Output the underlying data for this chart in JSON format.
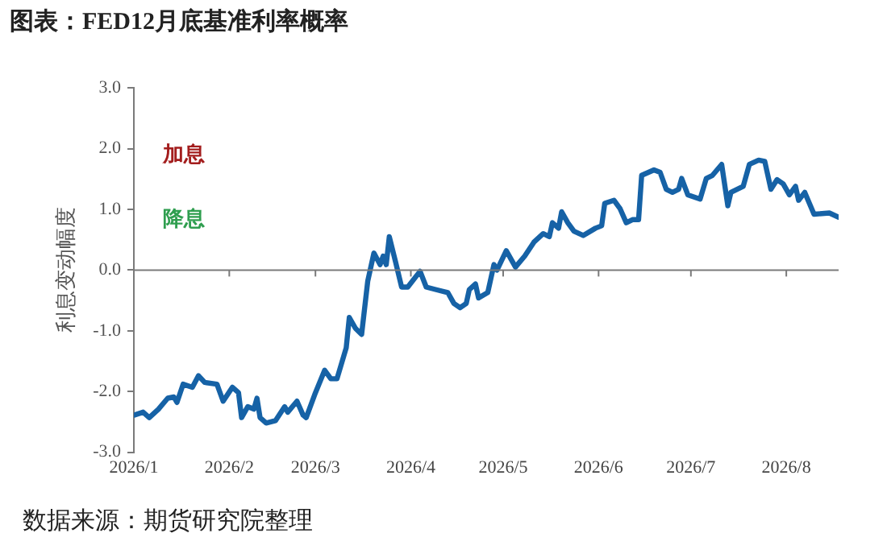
{
  "chart_data": {
    "type": "line",
    "title": "图表：FED12月底基准利率概率",
    "ylabel": "利息变动幅度",
    "annotations": [
      "加息",
      "降息",
      "数据来源：期货研究院整理"
    ],
    "x": [
      "2026-01-01",
      "2026-01-04",
      "2026-01-06",
      "2026-01-09",
      "2026-01-12",
      "2026-01-14",
      "2026-01-15",
      "2026-01-17",
      "2026-01-20",
      "2026-01-22",
      "2026-01-24",
      "2026-01-28",
      "2026-01-30",
      "2026-02-02",
      "2026-02-04",
      "2026-02-05",
      "2026-02-07",
      "2026-02-09",
      "2026-02-10",
      "2026-02-11",
      "2026-02-13",
      "2026-02-16",
      "2026-02-19",
      "2026-02-20",
      "2026-02-23",
      "2026-02-25",
      "2026-02-26",
      "2026-03-01",
      "2026-03-04",
      "2026-03-06",
      "2026-03-08",
      "2026-03-11",
      "2026-03-12",
      "2026-03-14",
      "2026-03-16",
      "2026-03-18",
      "2026-03-20",
      "2026-03-22",
      "2026-03-23",
      "2026-03-24",
      "2026-03-25",
      "2026-03-27",
      "2026-03-29",
      "2026-03-31",
      "2026-04-04",
      "2026-04-06",
      "2026-04-09",
      "2026-04-13",
      "2026-04-15",
      "2026-04-17",
      "2026-04-19",
      "2026-04-20",
      "2026-04-22",
      "2026-04-23",
      "2026-04-26",
      "2026-04-28",
      "2026-04-29",
      "2026-05-02",
      "2026-05-04",
      "2026-05-05",
      "2026-05-08",
      "2026-05-11",
      "2026-05-14",
      "2026-05-16",
      "2026-05-17",
      "2026-05-19",
      "2026-05-20",
      "2026-05-22",
      "2026-05-24",
      "2026-05-27",
      "2026-05-31",
      "2026-06-02",
      "2026-06-03",
      "2026-06-06",
      "2026-06-08",
      "2026-06-10",
      "2026-06-12",
      "2026-06-14",
      "2026-06-15",
      "2026-06-19",
      "2026-06-21",
      "2026-06-23",
      "2026-06-25",
      "2026-06-27",
      "2026-06-28",
      "2026-06-30",
      "2026-07-04",
      "2026-07-06",
      "2026-07-08",
      "2026-07-11",
      "2026-07-13",
      "2026-07-14",
      "2026-07-18",
      "2026-07-20",
      "2026-07-23",
      "2026-07-25",
      "2026-07-27",
      "2026-07-29",
      "2026-07-31",
      "2026-08-02",
      "2026-08-04",
      "2026-08-05",
      "2026-08-07",
      "2026-08-10",
      "2026-08-15",
      "2026-08-18"
    ],
    "series": [
      {
        "color": "#1662a6",
        "values": [
          -2.39,
          -2.34,
          -2.43,
          -2.29,
          -2.11,
          -2.09,
          -2.18,
          -1.88,
          -1.93,
          -1.74,
          -1.85,
          -1.88,
          -2.16,
          -1.93,
          -2.02,
          -2.43,
          -2.25,
          -2.29,
          -2.11,
          -2.43,
          -2.52,
          -2.48,
          -2.25,
          -2.34,
          -2.16,
          -2.39,
          -2.43,
          -2.02,
          -1.65,
          -1.79,
          -1.79,
          -1.28,
          -0.78,
          -0.96,
          -1.06,
          -0.18,
          0.28,
          0.09,
          0.23,
          0.09,
          0.55,
          0.14,
          -0.28,
          -0.28,
          -0.02,
          -0.28,
          -0.32,
          -0.37,
          -0.55,
          -0.62,
          -0.55,
          -0.32,
          -0.23,
          -0.46,
          -0.37,
          0.09,
          0.0,
          0.32,
          0.14,
          0.05,
          0.23,
          0.46,
          0.6,
          0.55,
          0.78,
          0.69,
          0.96,
          0.78,
          0.64,
          0.57,
          0.69,
          0.73,
          1.1,
          1.15,
          1.01,
          0.78,
          0.83,
          0.83,
          1.56,
          1.65,
          1.61,
          1.33,
          1.28,
          1.33,
          1.51,
          1.24,
          1.17,
          1.51,
          1.56,
          1.74,
          1.06,
          1.28,
          1.38,
          1.74,
          1.81,
          1.79,
          1.33,
          1.49,
          1.42,
          1.24,
          1.38,
          1.15,
          1.28,
          0.92,
          0.94,
          0.87
        ]
      }
    ],
    "xlim": [
      "2026-01-01",
      "2026-08-18"
    ],
    "xticks": [
      {
        "value": "2026-01-01",
        "label": "2026/1"
      },
      {
        "value": "2026-02-01",
        "label": "2026/2"
      },
      {
        "value": "2026-03-01",
        "label": "2026/3"
      },
      {
        "value": "2026-04-01",
        "label": "2026/4"
      },
      {
        "value": "2026-05-01",
        "label": "2026/5"
      },
      {
        "value": "2026-06-01",
        "label": "2026/6"
      },
      {
        "value": "2026-07-01",
        "label": "2026/7"
      },
      {
        "value": "2026-08-01",
        "label": "2026/8"
      }
    ],
    "ylim": [
      -3,
      3
    ],
    "yticks": [
      {
        "value": -3,
        "label": "-3.0"
      },
      {
        "value": -2,
        "label": "-2.0"
      },
      {
        "value": -1,
        "label": "-1.0"
      },
      {
        "value": 0,
        "label": "0.0"
      },
      {
        "value": 1,
        "label": "1.0"
      },
      {
        "value": 2,
        "label": "2.0"
      },
      {
        "value": 3,
        "label": "3.0"
      }
    ],
    "marker": "none",
    "line_style": "solid",
    "legend": false
  }
}
